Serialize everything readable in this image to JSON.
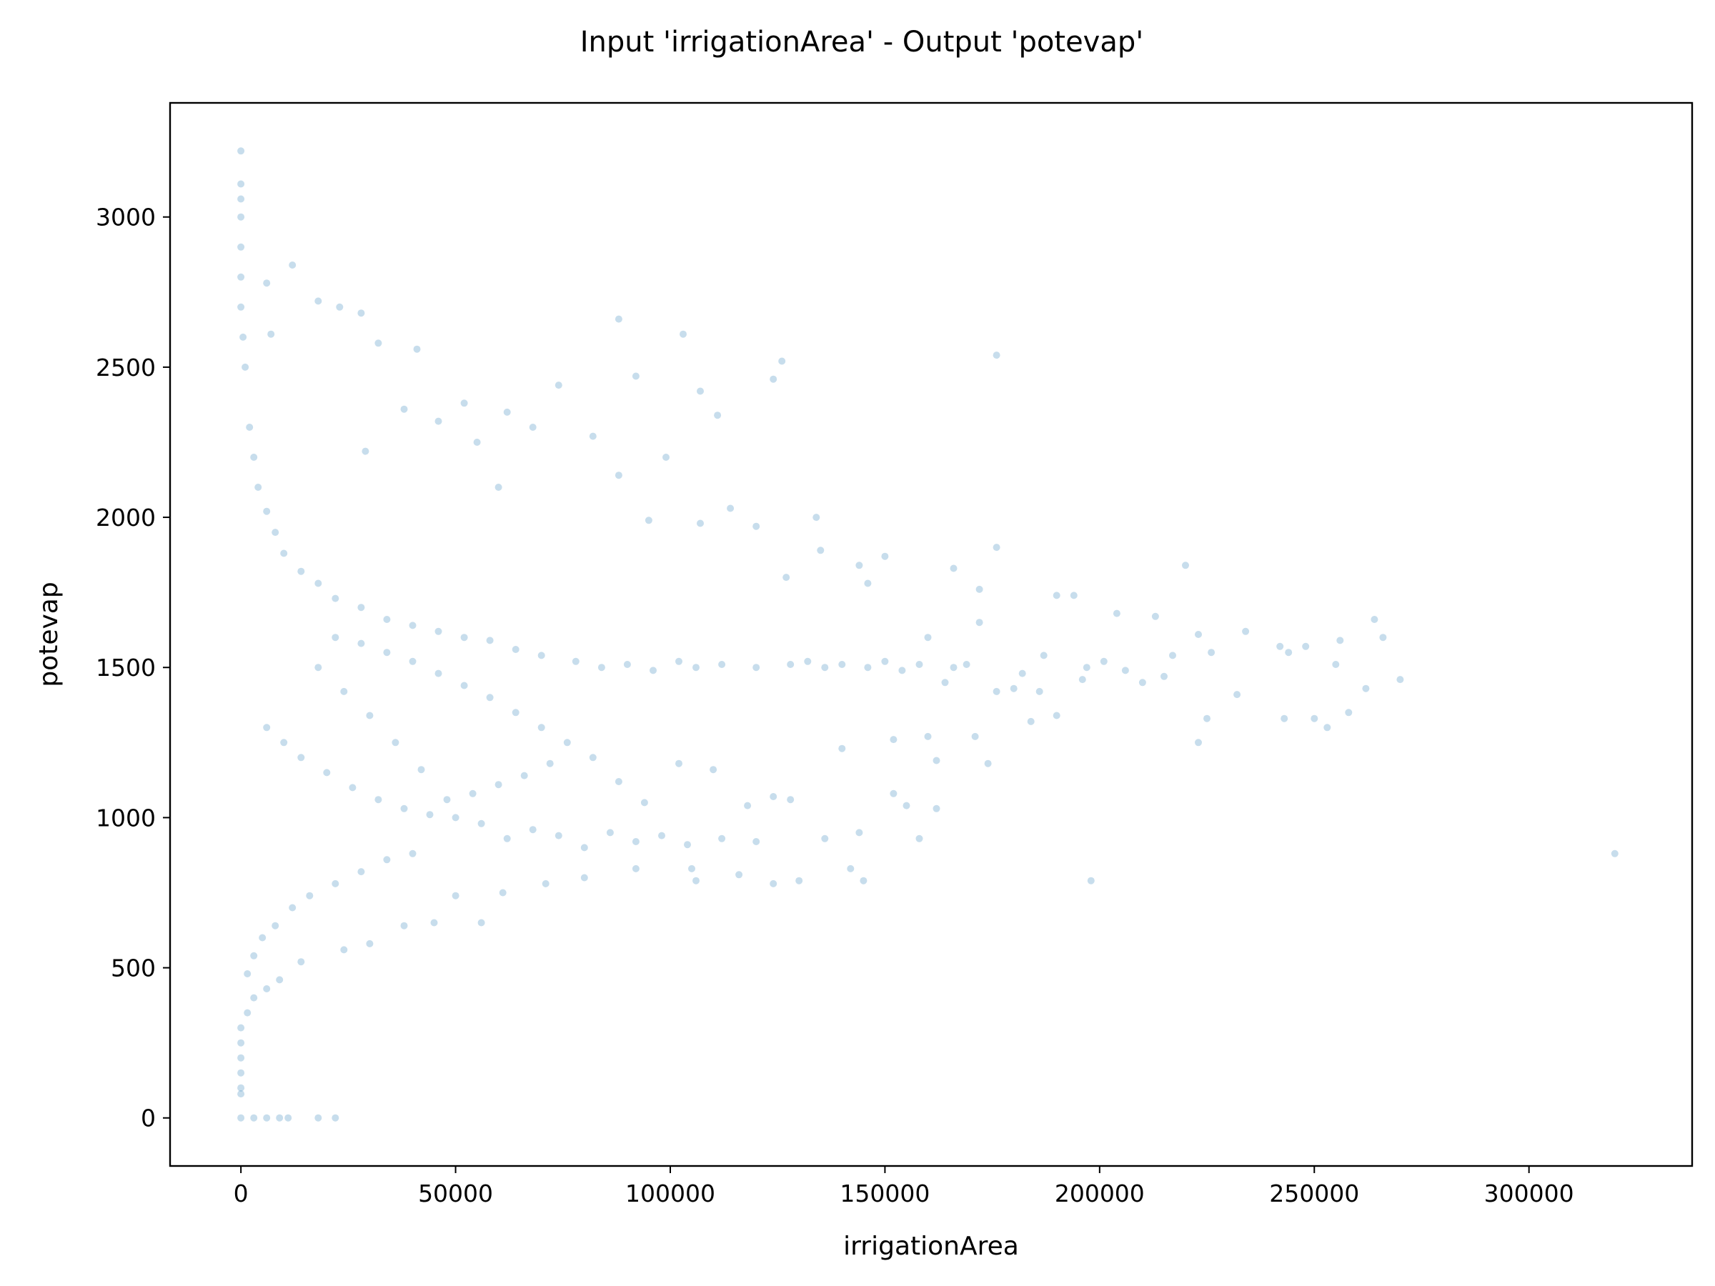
{
  "chart_data": {
    "type": "scatter",
    "title": "Input 'irrigationArea' - Output 'potevap'",
    "xlabel": "irrigationArea",
    "ylabel": "potevap",
    "xlim": [
      -16500,
      338000
    ],
    "ylim": [
      -160,
      3380
    ],
    "xticks": [
      0,
      50000,
      100000,
      150000,
      200000,
      250000,
      300000
    ],
    "xtick_labels": [
      "0",
      "50000",
      "100000",
      "150000",
      "200000",
      "250000",
      "300000"
    ],
    "yticks": [
      0,
      500,
      1000,
      1500,
      2000,
      2500,
      3000
    ],
    "ytick_labels": [
      "0",
      "500",
      "1000",
      "1500",
      "2000",
      "2500",
      "3000"
    ],
    "grid": false,
    "legend": "none",
    "point_color": "#1f77b4",
    "point_alpha": 0.25,
    "series": [
      {
        "points": [
          [
            0,
            3220
          ],
          [
            0,
            3110
          ],
          [
            0,
            3060
          ],
          [
            0,
            3000
          ],
          [
            0,
            2900
          ],
          [
            0,
            2800
          ],
          [
            0,
            2700
          ],
          [
            500,
            2600
          ],
          [
            1000,
            2500
          ],
          [
            0,
            0
          ],
          [
            3000,
            0
          ],
          [
            6000,
            0
          ],
          [
            9000,
            0
          ],
          [
            11000,
            0
          ],
          [
            18000,
            0
          ],
          [
            22000,
            0
          ],
          [
            12000,
            2840
          ],
          [
            6000,
            2780
          ],
          [
            18000,
            2720
          ],
          [
            23000,
            2700
          ],
          [
            28000,
            2680
          ],
          [
            88000,
            2660
          ],
          [
            103000,
            2610
          ],
          [
            7000,
            2610
          ],
          [
            32000,
            2580
          ],
          [
            41000,
            2560
          ],
          [
            126000,
            2520
          ],
          [
            176000,
            2540
          ],
          [
            124000,
            2460
          ],
          [
            92000,
            2470
          ],
          [
            74000,
            2440
          ],
          [
            107000,
            2420
          ],
          [
            38000,
            2360
          ],
          [
            52000,
            2380
          ],
          [
            62000,
            2350
          ],
          [
            111000,
            2340
          ],
          [
            46000,
            2320
          ],
          [
            68000,
            2300
          ],
          [
            82000,
            2270
          ],
          [
            55000,
            2250
          ],
          [
            29000,
            2220
          ],
          [
            99000,
            2200
          ],
          [
            88000,
            2140
          ],
          [
            60000,
            2100
          ],
          [
            114000,
            2030
          ],
          [
            134000,
            2000
          ],
          [
            95000,
            1990
          ],
          [
            107000,
            1980
          ],
          [
            120000,
            1970
          ],
          [
            176000,
            1900
          ],
          [
            135000,
            1890
          ],
          [
            150000,
            1870
          ],
          [
            220000,
            1840
          ],
          [
            144000,
            1840
          ],
          [
            166000,
            1830
          ],
          [
            127000,
            1800
          ],
          [
            146000,
            1780
          ],
          [
            172000,
            1760
          ],
          [
            190000,
            1740
          ],
          [
            194000,
            1740
          ],
          [
            204000,
            1680
          ],
          [
            213000,
            1670
          ],
          [
            264000,
            1660
          ],
          [
            172000,
            1650
          ],
          [
            160000,
            1600
          ],
          [
            223000,
            1610
          ],
          [
            234000,
            1620
          ],
          [
            266000,
            1600
          ],
          [
            256000,
            1590
          ],
          [
            242000,
            1570
          ],
          [
            248000,
            1570
          ],
          [
            244000,
            1550
          ],
          [
            226000,
            1550
          ],
          [
            217000,
            1540
          ],
          [
            187000,
            1540
          ],
          [
            201000,
            1520
          ],
          [
            206000,
            1490
          ],
          [
            197000,
            1500
          ],
          [
            182000,
            1480
          ],
          [
            255000,
            1510
          ],
          [
            270000,
            1460
          ],
          [
            262000,
            1430
          ],
          [
            232000,
            1410
          ],
          [
            215000,
            1470
          ],
          [
            210000,
            1450
          ],
          [
            196000,
            1460
          ],
          [
            180000,
            1430
          ],
          [
            164000,
            1450
          ],
          [
            176000,
            1420
          ],
          [
            186000,
            1420
          ],
          [
            190000,
            1340
          ],
          [
            184000,
            1320
          ],
          [
            258000,
            1350
          ],
          [
            250000,
            1330
          ],
          [
            243000,
            1330
          ],
          [
            253000,
            1300
          ],
          [
            223000,
            1250
          ],
          [
            225000,
            1330
          ],
          [
            171000,
            1270
          ],
          [
            160000,
            1270
          ],
          [
            152000,
            1260
          ],
          [
            140000,
            1230
          ],
          [
            162000,
            1190
          ],
          [
            174000,
            1180
          ],
          [
            152000,
            1080
          ],
          [
            155000,
            1040
          ],
          [
            162000,
            1030
          ],
          [
            158000,
            930
          ],
          [
            198000,
            790
          ],
          [
            320000,
            880
          ],
          [
            145000,
            790
          ],
          [
            142000,
            830
          ],
          [
            130000,
            790
          ],
          [
            124000,
            780
          ],
          [
            116000,
            810
          ],
          [
            106000,
            790
          ],
          [
            105000,
            830
          ],
          [
            92000,
            830
          ],
          [
            80000,
            800
          ],
          [
            71000,
            780
          ],
          [
            61000,
            750
          ],
          [
            50000,
            740
          ],
          [
            45000,
            650
          ],
          [
            56000,
            650
          ],
          [
            38000,
            640
          ],
          [
            30000,
            580
          ],
          [
            24000,
            560
          ],
          [
            14000,
            520
          ],
          [
            9000,
            460
          ],
          [
            6000,
            430
          ],
          [
            3000,
            400
          ],
          [
            1500,
            350
          ],
          [
            0,
            300
          ],
          [
            0,
            250
          ],
          [
            0,
            200
          ],
          [
            0,
            150
          ],
          [
            0,
            100
          ],
          [
            0,
            80
          ],
          [
            120000,
            1500
          ],
          [
            128000,
            1510
          ],
          [
            132000,
            1520
          ],
          [
            136000,
            1500
          ],
          [
            140000,
            1510
          ],
          [
            146000,
            1500
          ],
          [
            150000,
            1520
          ],
          [
            154000,
            1490
          ],
          [
            158000,
            1510
          ],
          [
            166000,
            1500
          ],
          [
            169000,
            1510
          ],
          [
            102000,
            1520
          ],
          [
            106000,
            1500
          ],
          [
            112000,
            1510
          ],
          [
            96000,
            1490
          ],
          [
            90000,
            1510
          ],
          [
            84000,
            1500
          ],
          [
            78000,
            1520
          ],
          [
            70000,
            1540
          ],
          [
            64000,
            1560
          ],
          [
            58000,
            1590
          ],
          [
            52000,
            1600
          ],
          [
            46000,
            1620
          ],
          [
            40000,
            1640
          ],
          [
            34000,
            1660
          ],
          [
            28000,
            1700
          ],
          [
            22000,
            1730
          ],
          [
            18000,
            1780
          ],
          [
            14000,
            1820
          ],
          [
            10000,
            1880
          ],
          [
            8000,
            1950
          ],
          [
            6000,
            2020
          ],
          [
            4000,
            2100
          ],
          [
            3000,
            2200
          ],
          [
            2000,
            2300
          ],
          [
            120000,
            920
          ],
          [
            112000,
            930
          ],
          [
            104000,
            910
          ],
          [
            98000,
            940
          ],
          [
            92000,
            920
          ],
          [
            86000,
            950
          ],
          [
            80000,
            900
          ],
          [
            74000,
            940
          ],
          [
            68000,
            960
          ],
          [
            62000,
            930
          ],
          [
            56000,
            980
          ],
          [
            50000,
            1000
          ],
          [
            44000,
            1010
          ],
          [
            38000,
            1030
          ],
          [
            32000,
            1060
          ],
          [
            26000,
            1100
          ],
          [
            20000,
            1150
          ],
          [
            14000,
            1200
          ],
          [
            10000,
            1250
          ],
          [
            6000,
            1300
          ],
          [
            136000,
            930
          ],
          [
            144000,
            950
          ],
          [
            128000,
            1060
          ],
          [
            124000,
            1070
          ],
          [
            118000,
            1040
          ],
          [
            110000,
            1160
          ],
          [
            102000,
            1180
          ],
          [
            94000,
            1050
          ],
          [
            88000,
            1120
          ],
          [
            82000,
            1200
          ],
          [
            76000,
            1250
          ],
          [
            70000,
            1300
          ],
          [
            64000,
            1350
          ],
          [
            58000,
            1400
          ],
          [
            52000,
            1440
          ],
          [
            46000,
            1480
          ],
          [
            40000,
            1520
          ],
          [
            34000,
            1550
          ],
          [
            28000,
            1580
          ],
          [
            22000,
            1600
          ],
          [
            72000,
            1180
          ],
          [
            66000,
            1140
          ],
          [
            60000,
            1110
          ],
          [
            54000,
            1080
          ],
          [
            48000,
            1060
          ],
          [
            42000,
            1160
          ],
          [
            36000,
            1250
          ],
          [
            30000,
            1340
          ],
          [
            24000,
            1420
          ],
          [
            18000,
            1500
          ],
          [
            40000,
            880
          ],
          [
            34000,
            860
          ],
          [
            28000,
            820
          ],
          [
            22000,
            780
          ],
          [
            16000,
            740
          ],
          [
            12000,
            700
          ],
          [
            8000,
            640
          ],
          [
            5000,
            600
          ],
          [
            3000,
            540
          ],
          [
            1500,
            480
          ]
        ]
      }
    ]
  }
}
